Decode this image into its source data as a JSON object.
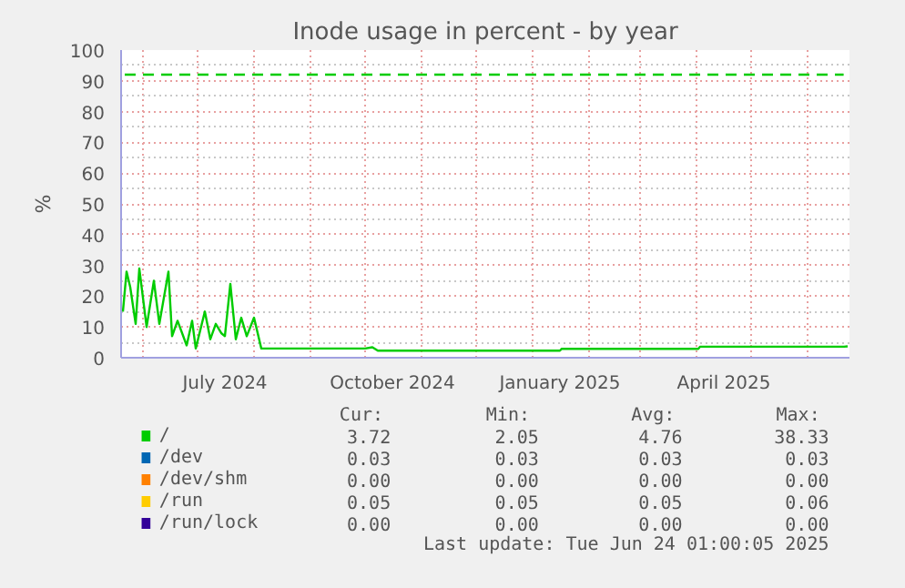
{
  "chart_data": {
    "type": "line",
    "title": "Inode usage in percent - by year",
    "ylabel": "%",
    "xlim": [
      "2024-05-20",
      "2025-06-24"
    ],
    "ylim": [
      0,
      100
    ],
    "yticks": [
      0,
      10,
      20,
      30,
      40,
      50,
      60,
      70,
      80,
      90,
      100
    ],
    "xticks": [
      {
        "value": "2024-06-01",
        "label": null
      },
      {
        "value": "2024-07-01",
        "label": null
      },
      {
        "value": "2024-07-16",
        "label": "July 2024"
      },
      {
        "value": "2024-08-01",
        "label": null
      },
      {
        "value": "2024-09-01",
        "label": null
      },
      {
        "value": "2024-10-01",
        "label": null
      },
      {
        "value": "2024-10-16",
        "label": "October 2024"
      },
      {
        "value": "2024-11-01",
        "label": null
      },
      {
        "value": "2024-12-01",
        "label": null
      },
      {
        "value": "2025-01-01",
        "label": null
      },
      {
        "value": "2025-01-16",
        "label": "January 2025"
      },
      {
        "value": "2025-02-01",
        "label": null
      },
      {
        "value": "2025-03-01",
        "label": null
      },
      {
        "value": "2025-04-01",
        "label": null
      },
      {
        "value": "2025-04-16",
        "label": "April 2025"
      },
      {
        "value": "2025-05-01",
        "label": null
      },
      {
        "value": "2025-06-01",
        "label": null
      }
    ],
    "grid": true,
    "legend": "bottom",
    "line_style": "solid",
    "marker": "none",
    "series": [
      {
        "name": "/",
        "color": "#00cc00",
        "x": [
          "2024-05-21",
          "2024-05-23",
          "2024-05-25",
          "2024-05-28",
          "2024-05-30",
          "2024-06-03",
          "2024-06-07",
          "2024-06-10",
          "2024-06-15",
          "2024-06-17",
          "2024-06-20",
          "2024-06-25",
          "2024-06-28",
          "2024-06-30",
          "2024-07-05",
          "2024-07-08",
          "2024-07-11",
          "2024-07-14",
          "2024-07-16",
          "2024-07-19",
          "2024-07-22",
          "2024-07-25",
          "2024-07-28",
          "2024-08-01",
          "2024-08-05",
          "2024-10-01",
          "2024-10-05",
          "2024-10-08",
          "2025-01-16",
          "2025-01-17",
          "2025-04-02",
          "2025-04-03",
          "2025-06-21",
          "2025-06-23"
        ],
        "values": [
          15,
          28,
          23,
          11,
          29,
          10,
          25,
          11,
          28,
          7,
          12,
          4,
          12,
          3,
          15,
          6,
          11,
          8,
          7,
          24,
          6,
          13,
          7,
          13,
          3,
          3,
          3.4,
          2.3,
          2.3,
          2.9,
          2.9,
          3.6,
          3.6,
          3.7
        ]
      },
      {
        "name": "/dev",
        "color": "#0066b3"
      },
      {
        "name": "/dev/shm",
        "color": "#ff8000"
      },
      {
        "name": "/run",
        "color": "#ffcc00"
      },
      {
        "name": "/run/lock",
        "color": "#330099"
      }
    ],
    "ref_lines": [
      {
        "axis": "y",
        "value": 92,
        "label": null,
        "color": "#00cc00",
        "line_style": "dashed"
      }
    ],
    "annotations": [
      "Cur:",
      "Min:",
      "Avg:",
      "Max:",
      "3.72",
      "2.05",
      "4.76",
      "38.33",
      "0.03",
      "0.03",
      "0.03",
      "0.03",
      "0.00",
      "0.00",
      "0.00",
      "0.00",
      "0.05",
      "0.05",
      "0.05",
      "0.06",
      "0.00",
      "0.00",
      "0.00",
      "0.00",
      "Last update: Tue Jun 24 01:00:05 2025"
    ]
  }
}
